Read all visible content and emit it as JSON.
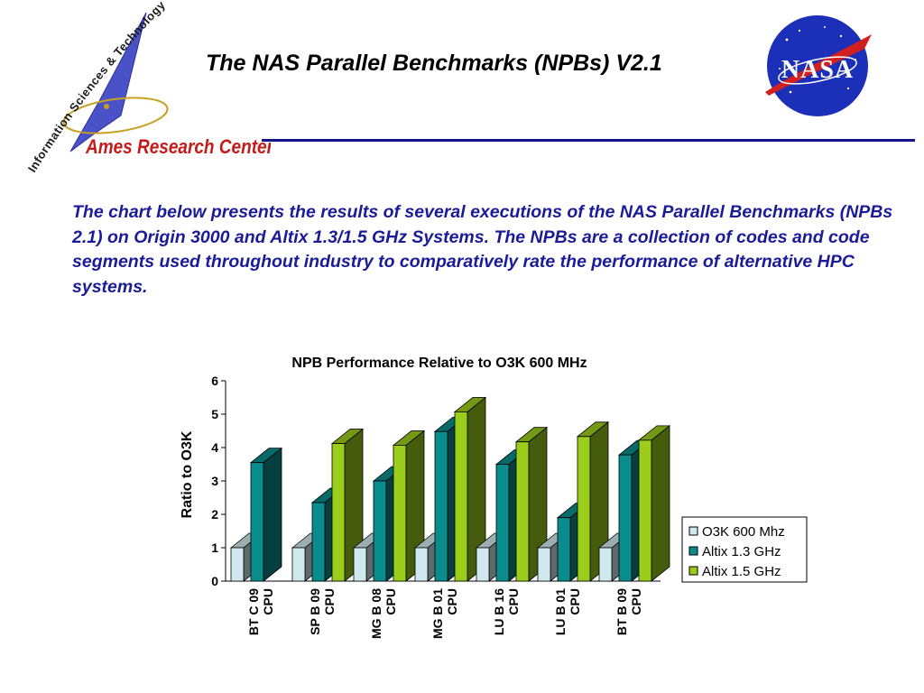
{
  "header": {
    "title": "The NAS Parallel Benchmarks (NPBs) V2.1",
    "logo_arc_text": "Information Sciences & Technology",
    "logo_center_text": "Ames Research Center",
    "nasa_logo_text": "NASA"
  },
  "intro": {
    "paragraph": "The chart below presents the results of several executions of the NAS Parallel Benchmarks (NPBs 2.1) on Origin 3000  and Altix 1.3/1.5 GHz Systems. The NPBs are a collection of codes and code segments used throughout industry to comparatively rate the performance of alternative HPC systems."
  },
  "colors": {
    "text_blue": "#1b1b9a",
    "rule_blue": "#14148c",
    "o3k": "#cfe9ee",
    "altix13": "#0a8c8c",
    "altix15": "#9acd1c"
  },
  "chart_data": {
    "type": "bar",
    "title": "NPB Performance Relative to O3K 600 MHz",
    "ylabel": "Ratio to O3K",
    "xlabel": "",
    "ylim": [
      0,
      6
    ],
    "yticks": [
      "0",
      "1",
      "2",
      "3",
      "4",
      "5",
      "6"
    ],
    "categories": [
      [
        "BT C 09",
        "CPU"
      ],
      [
        "SP B 09",
        "CPU"
      ],
      [
        "MG B 08",
        "CPU"
      ],
      [
        "MG B 01",
        "CPU"
      ],
      [
        "LU B 16",
        "CPU"
      ],
      [
        "LU B 01",
        "CPU"
      ],
      [
        "BT B 09",
        "CPU"
      ]
    ],
    "series": [
      {
        "name": "O3K 600 Mhz",
        "color": "#cfe9ee",
        "values": [
          1,
          1,
          1,
          1,
          1,
          1,
          1
        ]
      },
      {
        "name": "Altix 1.3 GHz",
        "color": "#0a8c8c",
        "values": [
          3.55,
          2.35,
          3.0,
          4.48,
          3.5,
          1.9,
          3.78
        ]
      },
      {
        "name": "Altix 1.5 GHz",
        "color": "#9acd1c",
        "values": [
          null,
          4.12,
          4.07,
          5.07,
          4.17,
          4.33,
          4.22
        ]
      }
    ],
    "legend": "right",
    "grid": false
  }
}
